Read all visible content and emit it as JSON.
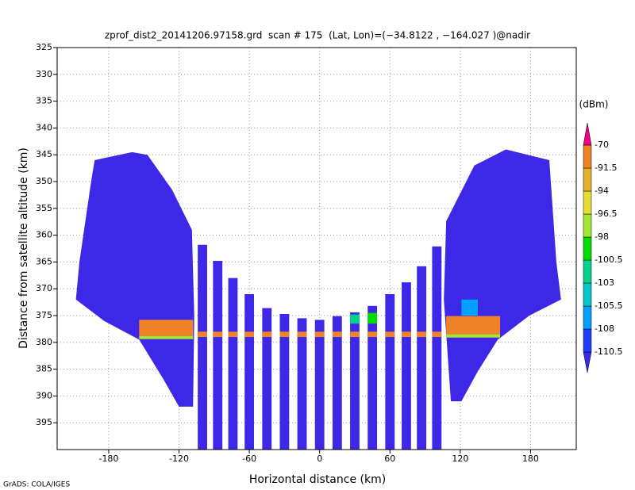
{
  "chart_data": {
    "type": "heatmap",
    "title": "zprof_dist2_20141206.97158.grd  scan # 175  (Lat, Lon)=(−34.8122 , −164.027 )@nadir",
    "x_label": "Horizontal distance (km)",
    "y_label": "Distance from satellite altitude (km)",
    "footer": "GrADS: COLA/IGES",
    "xlim": [
      -224,
      219
    ],
    "ylim": [
      325,
      400
    ],
    "y_inverted": true,
    "xticks": [
      -180,
      -120,
      -60,
      0,
      60,
      120,
      180
    ],
    "yticks": [
      325,
      330,
      335,
      340,
      345,
      350,
      355,
      360,
      365,
      370,
      375,
      380,
      385,
      390,
      395
    ],
    "grid": true,
    "colorbar": {
      "unit": "(dBm)",
      "levels": [
        -110.5,
        -108,
        -105.5,
        -103,
        -100.5,
        -98,
        -96.5,
        -94,
        -91.5,
        -70
      ],
      "colors": [
        "#3c28e6",
        "#1e3cff",
        "#00a0ff",
        "#00c8c8",
        "#00d28c",
        "#00dc00",
        "#a0e632",
        "#e6dc32",
        "#e6af2d",
        "#f08228",
        "#f00082"
      ]
    },
    "wings": [
      {
        "value": -112,
        "points": [
          [
            -192,
            346
          ],
          [
            -160,
            344.5
          ],
          [
            -147,
            345
          ],
          [
            -126,
            351.5
          ],
          [
            -109,
            359
          ],
          [
            -107,
            375
          ],
          [
            -108,
            392
          ],
          [
            -120,
            392
          ],
          [
            -133,
            387
          ],
          [
            -154,
            379.5
          ],
          [
            -184,
            376
          ],
          [
            -208,
            372
          ],
          [
            -205,
            365
          ],
          [
            -195,
            350
          ]
        ]
      },
      {
        "value": -112,
        "points": [
          [
            196,
            346
          ],
          [
            159,
            344
          ],
          [
            132,
            347
          ],
          [
            108,
            357.4
          ],
          [
            106,
            372
          ],
          [
            112,
            391
          ],
          [
            121,
            391
          ],
          [
            135,
            385.4
          ],
          [
            152,
            379.5
          ],
          [
            179,
            375
          ],
          [
            206,
            372
          ],
          [
            202,
            365
          ]
        ]
      }
    ],
    "beams": {
      "x": [
        -100,
        -87,
        -74,
        -60,
        -45,
        -30,
        -15,
        0,
        15,
        30,
        45,
        60,
        74,
        87,
        100
      ],
      "top": [
        361.8,
        364.8,
        368,
        371,
        373.6,
        374.7,
        375.5,
        375.8,
        375.1,
        374.4,
        373.2,
        371,
        368.8,
        365.8,
        362.1
      ],
      "bottom": [
        400,
        400,
        400,
        400,
        400,
        400,
        400,
        400,
        400,
        400,
        400,
        400,
        400,
        400,
        400
      ],
      "width": 8,
      "value": -112
    },
    "band": {
      "top": 378,
      "bottom": 379,
      "value": -80
    },
    "regions": [
      {
        "value": -85,
        "points": [
          [
            -154,
            375.8
          ],
          [
            -108,
            375.8
          ],
          [
            -108,
            378.8
          ],
          [
            -154,
            378.8
          ]
        ]
      },
      {
        "value": -97,
        "points": [
          [
            -154,
            378.8
          ],
          [
            -108,
            378.8
          ],
          [
            -108,
            379.4
          ],
          [
            -154,
            379.4
          ]
        ]
      },
      {
        "value": -85,
        "points": [
          [
            108,
            375.1
          ],
          [
            154,
            375.1
          ],
          [
            154,
            378.5
          ],
          [
            108,
            378.5
          ]
        ]
      },
      {
        "value": -97,
        "points": [
          [
            108,
            378.5
          ],
          [
            154,
            378.5
          ],
          [
            154,
            379.1
          ],
          [
            108,
            379.1
          ]
        ]
      },
      {
        "value": -107,
        "points": [
          [
            121,
            372
          ],
          [
            135,
            372
          ],
          [
            135,
            375
          ],
          [
            121,
            375
          ]
        ]
      },
      {
        "value": -101,
        "points": [
          [
            26,
            374.8
          ],
          [
            34,
            374.8
          ],
          [
            34,
            376.5
          ],
          [
            26,
            376.5
          ]
        ]
      },
      {
        "value": -99,
        "points": [
          [
            41,
            374.5
          ],
          [
            49,
            374.5
          ],
          [
            49,
            376.5
          ],
          [
            41,
            376.5
          ]
        ]
      }
    ]
  }
}
